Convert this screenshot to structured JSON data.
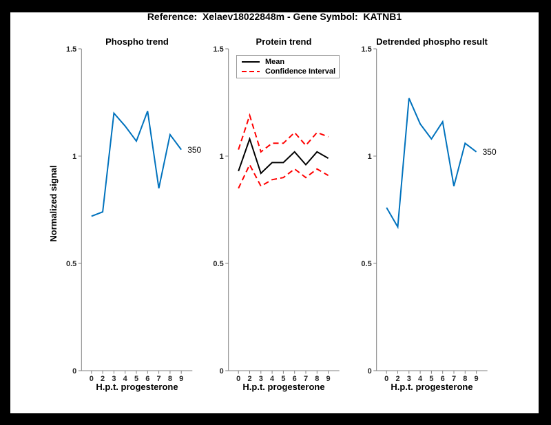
{
  "figure": {
    "title": "Reference:  Xelaev18022848m - Gene Symbol:  KATNB1",
    "frame_color": "#000000",
    "canvas_color": "#ffffff"
  },
  "axis_style": {
    "line_color": "#808080",
    "tick_text_color": "#262626"
  },
  "chart_data": [
    {
      "type": "line",
      "title": "Phospho trend",
      "xlabel": "H.p.t. progesterone",
      "ylabel": "Normalized signal",
      "x": [
        0,
        2,
        3,
        4,
        5,
        6,
        7,
        8,
        9
      ],
      "x_tick_labels": [
        "0",
        "2",
        "3",
        "4",
        "5",
        "6",
        "7",
        "8",
        "9"
      ],
      "y_ticks": [
        0,
        0.5,
        1,
        1.5
      ],
      "y_tick_labels": [
        "0",
        "0.5",
        "1",
        "1.5"
      ],
      "ylim": [
        0,
        1.5
      ],
      "grid": false,
      "legend": null,
      "series": [
        {
          "name": "phospho-signal",
          "color": "#0072BD",
          "style": "solid",
          "width": 2,
          "values": [
            0.72,
            0.74,
            1.2,
            1.14,
            1.07,
            1.21,
            0.85,
            1.1,
            1.03
          ]
        }
      ],
      "annotation": "350"
    },
    {
      "type": "line",
      "title": "Protein trend",
      "xlabel": "H.p.t. progesterone",
      "ylabel": "",
      "x": [
        0,
        2,
        3,
        4,
        5,
        6,
        7,
        8,
        9
      ],
      "x_tick_labels": [
        "0",
        "2",
        "3",
        "4",
        "5",
        "6",
        "7",
        "8",
        "9"
      ],
      "y_ticks": [
        0,
        0.5,
        1,
        1.5
      ],
      "y_tick_labels": [
        "0",
        "0.5",
        "1",
        "1.5"
      ],
      "ylim": [
        0,
        1.5
      ],
      "grid": false,
      "legend": {
        "position": "northwest",
        "entries": [
          {
            "label": "Mean",
            "color": "#000000",
            "style": "solid"
          },
          {
            "label": "Confidence Interval",
            "color": "#FF0000",
            "style": "dashed"
          }
        ]
      },
      "series": [
        {
          "name": "mean",
          "color": "#000000",
          "style": "solid",
          "width": 2,
          "values": [
            0.93,
            1.08,
            0.92,
            0.97,
            0.97,
            1.02,
            0.96,
            1.02,
            0.99
          ]
        },
        {
          "name": "confidence-interval-upper",
          "color": "#FF0000",
          "style": "dashed",
          "width": 2,
          "values": [
            1.03,
            1.19,
            1.02,
            1.06,
            1.06,
            1.11,
            1.05,
            1.11,
            1.09
          ]
        },
        {
          "name": "confidence-interval-lower",
          "color": "#FF0000",
          "style": "dashed",
          "width": 2,
          "values": [
            0.85,
            0.96,
            0.86,
            0.89,
            0.9,
            0.94,
            0.9,
            0.94,
            0.91
          ]
        }
      ],
      "annotation": null
    },
    {
      "type": "line",
      "title": "Detrended phospho result",
      "xlabel": "H.p.t. progesterone",
      "ylabel": "",
      "x": [
        0,
        2,
        3,
        4,
        5,
        6,
        7,
        8,
        9
      ],
      "x_tick_labels": [
        "0",
        "2",
        "3",
        "4",
        "5",
        "6",
        "7",
        "8",
        "9"
      ],
      "y_ticks": [
        0,
        0.5,
        1,
        1.5
      ],
      "y_tick_labels": [
        "0",
        "0.5",
        "1",
        "1.5"
      ],
      "ylim": [
        0,
        1.5
      ],
      "grid": false,
      "legend": null,
      "series": [
        {
          "name": "detrended-phospho-signal",
          "color": "#0072BD",
          "style": "solid",
          "width": 2,
          "values": [
            0.76,
            0.67,
            1.27,
            1.15,
            1.08,
            1.16,
            0.86,
            1.06,
            1.02
          ]
        }
      ],
      "annotation": "350"
    }
  ]
}
